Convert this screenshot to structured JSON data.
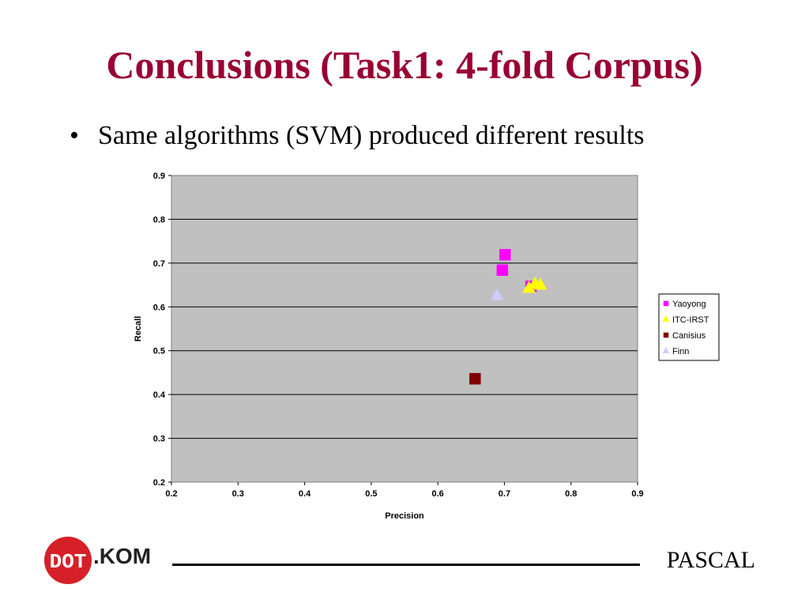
{
  "slide": {
    "title": "Conclusions (Task1: 4-fold Corpus)",
    "bullet_marker": "•",
    "bullet_text": "Same algorithms (SVM) produced different results"
  },
  "footer": {
    "logo_text": ".KOM",
    "brand": "PASCAL"
  },
  "colors": {
    "title": "#990033",
    "plot_bg": "#c0c0c0",
    "Yaoyong": "#ff00ff",
    "ITC-IRST": "#ffff00",
    "Canisius": "#800000",
    "Finn": "#ccccff"
  },
  "chart_data": {
    "type": "scatter",
    "xlabel": "Precision",
    "ylabel": "Recall",
    "xlim": [
      0.2,
      0.9
    ],
    "ylim": [
      0.2,
      0.9
    ],
    "xticks": [
      "0.2",
      "0.3",
      "0.4",
      "0.5",
      "0.6",
      "0.7",
      "0.8",
      "0.9"
    ],
    "yticks": [
      "0.2",
      "0.3",
      "0.4",
      "0.5",
      "0.6",
      "0.7",
      "0.8",
      "0.9"
    ],
    "grid": "horizontal",
    "legend_position": "right",
    "series": [
      {
        "name": "Yaoyong",
        "marker": "square",
        "points": [
          [
            0.701,
            0.719
          ],
          [
            0.697,
            0.684
          ],
          [
            0.74,
            0.647
          ]
        ]
      },
      {
        "name": "ITC-IRST",
        "marker": "triangle",
        "points": [
          [
            0.737,
            0.644
          ],
          [
            0.746,
            0.654
          ],
          [
            0.754,
            0.651
          ]
        ]
      },
      {
        "name": "Canisius",
        "marker": "square",
        "points": [
          [
            0.656,
            0.436
          ]
        ]
      },
      {
        "name": "Finn",
        "marker": "triangle",
        "points": [
          [
            0.689,
            0.627
          ]
        ]
      }
    ]
  }
}
